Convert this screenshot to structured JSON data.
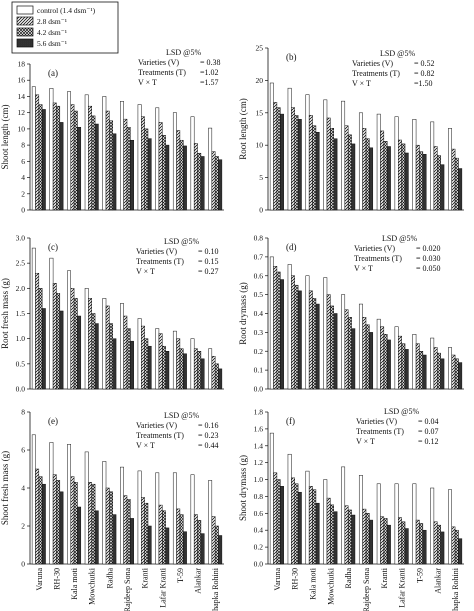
{
  "legend": {
    "position": "top-left",
    "entries": [
      {
        "label": "control (1.4 dsm⁻¹)",
        "pattern": "white"
      },
      {
        "label": "2.8 dsm⁻¹",
        "pattern": "diag"
      },
      {
        "label": "4.2 dsm⁻¹",
        "pattern": "cross"
      },
      {
        "label": "5.6 dsm⁻¹",
        "pattern": "dense"
      }
    ]
  },
  "colors": {
    "bar_stroke": "#111111",
    "hatch": "#111111",
    "background": "#ffffff"
  },
  "chart_data": [
    {
      "type": "bar",
      "panel_label": "(a)",
      "ylabel": "Shoot length (cm)",
      "ylim": [
        0,
        18
      ],
      "yticks": [
        0,
        2,
        4,
        6,
        8,
        10,
        12,
        14,
        16,
        18
      ],
      "categories": [
        "Varuna",
        "RH-30",
        "Kala moti",
        "Mowchutki",
        "Radha",
        "Rajdeep Sona",
        "Kranti",
        "Lafar Kranti",
        "T-59",
        "Alankar",
        "Chapka Rohini"
      ],
      "series": [
        {
          "name": "control (1.4 dsm⁻¹)",
          "values": [
            15.2,
            15.0,
            14.6,
            14.2,
            14.0,
            13.4,
            13.0,
            12.6,
            12.0,
            11.5,
            10.1
          ]
        },
        {
          "name": "2.8 dsm⁻¹",
          "values": [
            14.2,
            13.2,
            13.0,
            12.8,
            12.2,
            11.2,
            11.5,
            10.8,
            9.8,
            8.2,
            7.2
          ]
        },
        {
          "name": "4.2 dsm⁻¹",
          "values": [
            13.0,
            12.8,
            12.2,
            11.6,
            11.0,
            10.2,
            10.0,
            9.2,
            8.6,
            7.0,
            6.6
          ]
        },
        {
          "name": "5.6 dsm⁻¹",
          "values": [
            12.4,
            10.8,
            10.2,
            10.6,
            9.4,
            8.6,
            8.8,
            8.0,
            7.9,
            6.6,
            6.2
          ]
        }
      ],
      "stats": {
        "title": "LSD @5%",
        "rows": [
          {
            "label": "Varieties (V)",
            "value": "= 0.38"
          },
          {
            "label": "Treatments (T)",
            "value": "=1.02"
          },
          {
            "label": "V × T",
            "value": "=1.57"
          }
        ]
      }
    },
    {
      "type": "bar",
      "panel_label": "(b)",
      "ylabel": "Root length (cm)",
      "ylim": [
        0,
        25
      ],
      "yticks": [
        0,
        5,
        10,
        15,
        20,
        25
      ],
      "categories": [
        "Varuna",
        "RH-30",
        "Kala moti",
        "Mowchutki",
        "Radha",
        "Rajdeep Sona",
        "Kranti",
        "Lafar Kranti",
        "T-59",
        "Alankar",
        "Chapka Rohini"
      ],
      "series": [
        {
          "name": "control (1.4 dsm⁻¹)",
          "values": [
            19.6,
            18.8,
            17.8,
            17.0,
            16.8,
            15.0,
            14.8,
            14.4,
            14.0,
            13.6,
            12.6
          ]
        },
        {
          "name": "2.8 dsm⁻¹",
          "values": [
            16.6,
            15.8,
            14.6,
            14.2,
            13.0,
            12.6,
            12.2,
            10.8,
            10.0,
            9.8,
            9.4
          ]
        },
        {
          "name": "4.2 dsm⁻¹",
          "values": [
            15.8,
            14.6,
            13.0,
            12.6,
            11.6,
            11.0,
            10.6,
            10.2,
            9.0,
            8.4,
            8.0
          ]
        },
        {
          "name": "5.6 dsm⁻¹",
          "values": [
            14.8,
            14.0,
            12.0,
            11.0,
            10.2,
            9.6,
            9.8,
            8.8,
            8.6,
            7.0,
            6.4
          ]
        }
      ],
      "stats": {
        "title": "LSD @5%",
        "rows": [
          {
            "label": "Varieties (V)",
            "value": "= 0.52"
          },
          {
            "label": "Treatments (T)",
            "value": "= 0.82"
          },
          {
            "label": "V × T",
            "value": "=1.50"
          }
        ]
      }
    },
    {
      "type": "bar",
      "panel_label": "(c)",
      "ylabel": "Root fresh mass (g)",
      "ylim": [
        0,
        3.0
      ],
      "yticks": [
        0.0,
        0.5,
        1.0,
        1.5,
        2.0,
        2.5,
        3.0
      ],
      "categories": [
        "Varuna",
        "RH-30",
        "Kala moti",
        "Mowchutki",
        "Radha",
        "Rajdeep Sona",
        "Kranti",
        "Lafar Kranti",
        "T-59",
        "Alankar",
        "Chapka Rohini"
      ],
      "series": [
        {
          "name": "control (1.4 dsm⁻¹)",
          "values": [
            2.8,
            2.6,
            2.35,
            2.0,
            1.8,
            1.7,
            1.4,
            1.2,
            1.15,
            1.0,
            0.8
          ]
        },
        {
          "name": "2.8 dsm⁻¹",
          "values": [
            2.3,
            2.1,
            2.0,
            1.8,
            1.65,
            1.45,
            1.25,
            1.1,
            1.0,
            0.8,
            0.65
          ]
        },
        {
          "name": "4.2 dsm⁻¹",
          "values": [
            2.0,
            1.9,
            1.8,
            1.5,
            1.3,
            1.2,
            1.0,
            0.85,
            0.8,
            0.75,
            0.5
          ]
        },
        {
          "name": "5.6 dsm⁻¹",
          "values": [
            1.6,
            1.55,
            1.45,
            1.3,
            1.0,
            0.95,
            0.85,
            0.75,
            0.7,
            0.6,
            0.4
          ]
        }
      ],
      "stats": {
        "title": "LSD @5%",
        "rows": [
          {
            "label": "Varieties (V)",
            "value": "= 0.10"
          },
          {
            "label": "Treatments (T)",
            "value": "= 0.15"
          },
          {
            "label": "V × T",
            "value": "= 0.27"
          }
        ]
      }
    },
    {
      "type": "bar",
      "panel_label": "(d)",
      "ylabel": "Root drymass (g)",
      "ylim": [
        0,
        0.8
      ],
      "yticks": [
        0.0,
        0.1,
        0.2,
        0.3,
        0.4,
        0.5,
        0.6,
        0.7,
        0.8
      ],
      "categories": [
        "Varuna",
        "RH-30",
        "Kala moti",
        "Mowchutki",
        "Radha",
        "Rajdeep Sona",
        "Kranti",
        "Lafar Kranti",
        "T-59",
        "Alankar",
        "Chapka Rohini"
      ],
      "series": [
        {
          "name": "control (1.4 dsm⁻¹)",
          "values": [
            0.7,
            0.66,
            0.6,
            0.59,
            0.5,
            0.45,
            0.37,
            0.33,
            0.29,
            0.27,
            0.22
          ]
        },
        {
          "name": "2.8 dsm⁻¹",
          "values": [
            0.65,
            0.6,
            0.52,
            0.5,
            0.42,
            0.38,
            0.33,
            0.28,
            0.24,
            0.22,
            0.18
          ]
        },
        {
          "name": "4.2 dsm⁻¹",
          "values": [
            0.62,
            0.55,
            0.48,
            0.44,
            0.38,
            0.34,
            0.29,
            0.24,
            0.2,
            0.19,
            0.16
          ]
        },
        {
          "name": "5.6 dsm⁻¹",
          "values": [
            0.58,
            0.52,
            0.45,
            0.4,
            0.32,
            0.3,
            0.26,
            0.21,
            0.18,
            0.16,
            0.14
          ]
        }
      ],
      "stats": {
        "title": "LSD @5%",
        "rows": [
          {
            "label": "Varieties (V)",
            "value": "= 0.020"
          },
          {
            "label": "Treatments (T)",
            "value": "= 0.030"
          },
          {
            "label": "V × T",
            "value": "= 0.050"
          }
        ]
      }
    },
    {
      "type": "bar",
      "panel_label": "(e)",
      "ylabel": "Shoot fresh mass (g)",
      "ylim": [
        0,
        8
      ],
      "yticks": [
        0,
        2,
        4,
        6,
        8
      ],
      "categories": [
        "Varuna",
        "RH-30",
        "Kala moti",
        "Mowchutki",
        "Radha",
        "Rajdeep Sona",
        "Kranti",
        "Lafar Kranti",
        "T-59",
        "Alankar",
        "Chapka Rohini"
      ],
      "series": [
        {
          "name": "control (1.4 dsm⁻¹)",
          "values": [
            6.8,
            6.4,
            6.3,
            5.9,
            5.4,
            5.1,
            4.9,
            4.8,
            4.8,
            4.7,
            4.4
          ]
        },
        {
          "name": "2.8 dsm⁻¹",
          "values": [
            5.0,
            4.7,
            4.6,
            4.3,
            4.0,
            3.6,
            3.5,
            3.1,
            2.9,
            2.6,
            2.5
          ]
        },
        {
          "name": "4.2 dsm⁻¹",
          "values": [
            4.6,
            4.4,
            4.3,
            4.2,
            3.8,
            3.4,
            3.2,
            2.8,
            2.6,
            2.3,
            2.0
          ]
        },
        {
          "name": "5.6 dsm⁻¹",
          "values": [
            4.2,
            3.8,
            3.0,
            2.8,
            2.6,
            2.4,
            2.0,
            1.9,
            1.7,
            1.6,
            1.5
          ]
        }
      ],
      "stats": {
        "title": "LSD @5%",
        "rows": [
          {
            "label": "Varieties (V)",
            "value": "= 0.16"
          },
          {
            "label": "Treatments (T)",
            "value": "= 0.23"
          },
          {
            "label": "V × T",
            "value": "= 0.44"
          }
        ]
      }
    },
    {
      "type": "bar",
      "panel_label": "(f)",
      "ylabel": "Shoot drymass (g)",
      "ylim": [
        0,
        1.8
      ],
      "yticks": [
        0.0,
        0.2,
        0.4,
        0.6,
        0.8,
        1.0,
        1.2,
        1.4,
        1.6,
        1.8
      ],
      "categories": [
        "Varuna",
        "RH-30",
        "Kala moti",
        "Mowchutki",
        "Radha",
        "Rajdeep Sona",
        "Kranti",
        "Lafar Kranti",
        "T-59",
        "Alankar",
        "Chapka Rohini"
      ],
      "series": [
        {
          "name": "control (1.4 dsm⁻¹)",
          "values": [
            1.55,
            1.3,
            1.1,
            1.0,
            1.15,
            1.05,
            0.95,
            0.95,
            0.95,
            0.9,
            0.88
          ]
        },
        {
          "name": "2.8 dsm⁻¹",
          "values": [
            1.08,
            1.02,
            0.92,
            0.78,
            0.69,
            0.65,
            0.56,
            0.55,
            0.52,
            0.5,
            0.44
          ]
        },
        {
          "name": "4.2 dsm⁻¹",
          "values": [
            1.0,
            0.95,
            0.88,
            0.7,
            0.64,
            0.6,
            0.54,
            0.5,
            0.48,
            0.46,
            0.4
          ]
        },
        {
          "name": "5.6 dsm⁻¹",
          "values": [
            0.92,
            0.85,
            0.72,
            0.62,
            0.58,
            0.52,
            0.46,
            0.42,
            0.4,
            0.38,
            0.3
          ]
        }
      ],
      "stats": {
        "title": "LSD @5%",
        "rows": [
          {
            "label": "Varieties (V)",
            "value": "= 0.04"
          },
          {
            "label": "Treatments (T)",
            "value": "= 0.07"
          },
          {
            "label": "V × T",
            "value": "= 0.12"
          }
        ]
      }
    }
  ]
}
